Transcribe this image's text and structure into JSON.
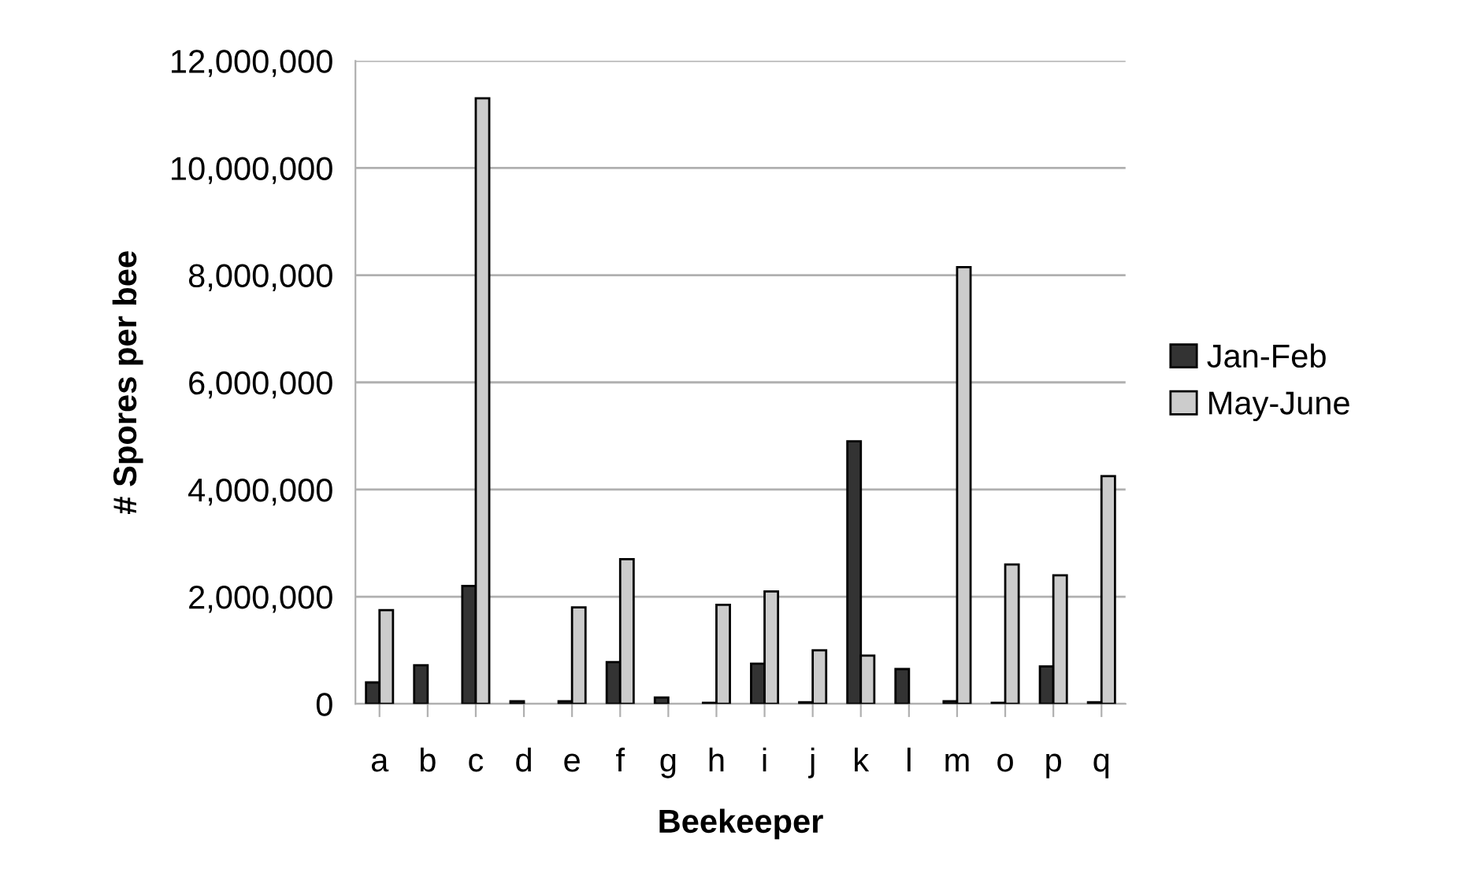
{
  "chart_data": {
    "type": "bar",
    "xlabel": "Beekeeper",
    "ylabel": "# Spores per bee",
    "categories": [
      "a",
      "b",
      "c",
      "d",
      "e",
      "f",
      "g",
      "h",
      "i",
      "j",
      "k",
      "l",
      "m",
      "o",
      "p",
      "q"
    ],
    "series": [
      {
        "name": "Jan-Feb",
        "color": "#333333",
        "values": [
          400000,
          720000,
          2200000,
          50000,
          50000,
          780000,
          120000,
          20000,
          750000,
          30000,
          4900000,
          650000,
          50000,
          20000,
          700000,
          30000
        ]
      },
      {
        "name": "May-June",
        "color": "#cccccc",
        "values": [
          1750000,
          null,
          11300000,
          null,
          1800000,
          2700000,
          null,
          1850000,
          2100000,
          1000000,
          900000,
          null,
          8150000,
          2600000,
          2400000,
          4250000
        ]
      }
    ],
    "ylim": [
      0,
      12000000
    ],
    "yticks": [
      {
        "value": 0,
        "label": "0"
      },
      {
        "value": 2000000,
        "label": "2,000,000"
      },
      {
        "value": 4000000,
        "label": "4,000,000"
      },
      {
        "value": 6000000,
        "label": "6,000,000"
      },
      {
        "value": 8000000,
        "label": "8,000,000"
      },
      {
        "value": 10000000,
        "label": "10,000,000"
      },
      {
        "value": 12000000,
        "label": "12,000,000"
      }
    ],
    "grid": "y",
    "legend": "right"
  }
}
